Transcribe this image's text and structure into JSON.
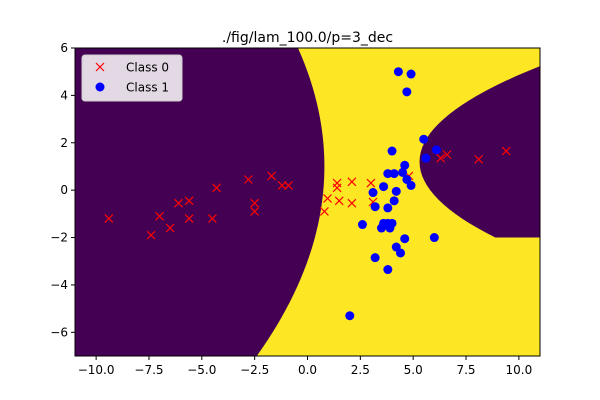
{
  "chart_data": {
    "type": "scatter",
    "title": "./fig/lam_100.0/p=3_dec",
    "xlabel": "",
    "ylabel": "",
    "xlim": [
      -11,
      11
    ],
    "ylim": [
      -7,
      6
    ],
    "x_ticks": [
      {
        "value": -10,
        "label": "−10.0"
      },
      {
        "value": -7.5,
        "label": "−7.5"
      },
      {
        "value": -5,
        "label": "−5.0"
      },
      {
        "value": -2.5,
        "label": "−2.5"
      },
      {
        "value": 0,
        "label": "0.0"
      },
      {
        "value": 2.5,
        "label": "2.5"
      },
      {
        "value": 5,
        "label": "5.0"
      },
      {
        "value": 7.5,
        "label": "7.5"
      },
      {
        "value": 10,
        "label": "10.0"
      }
    ],
    "y_ticks": [
      {
        "value": -6,
        "label": "−6"
      },
      {
        "value": -4,
        "label": "−4"
      },
      {
        "value": -2,
        "label": "−2"
      },
      {
        "value": 0,
        "label": "0"
      },
      {
        "value": 2,
        "label": "2"
      },
      {
        "value": 4,
        "label": "4"
      },
      {
        "value": 6,
        "label": "6"
      }
    ],
    "legend": {
      "position": "upper-left"
    },
    "grid": false,
    "background": {
      "regions": [
        {
          "name": "Class 0 region",
          "color": "#440154"
        },
        {
          "name": "Class 1 region",
          "color": "#fde725"
        }
      ]
    },
    "series": [
      {
        "name": "Class 0",
        "marker": "x",
        "color": "#ff0000",
        "points": [
          [
            -9.4,
            -1.2
          ],
          [
            -7.4,
            -1.9
          ],
          [
            -7.0,
            -1.1
          ],
          [
            -6.5,
            -1.6
          ],
          [
            -6.1,
            -0.55
          ],
          [
            -5.6,
            -0.45
          ],
          [
            -5.6,
            -1.2
          ],
          [
            -4.5,
            -1.2
          ],
          [
            -4.3,
            0.1
          ],
          [
            -2.8,
            0.45
          ],
          [
            -2.5,
            -0.55
          ],
          [
            -2.5,
            -0.9
          ],
          [
            -1.7,
            0.6
          ],
          [
            -1.2,
            0.2
          ],
          [
            -0.9,
            0.2
          ],
          [
            0.8,
            -0.9
          ],
          [
            0.95,
            -0.35
          ],
          [
            1.4,
            0.3
          ],
          [
            1.4,
            0.1
          ],
          [
            1.5,
            -0.45
          ],
          [
            2.1,
            0.35
          ],
          [
            2.1,
            -0.55
          ],
          [
            3.0,
            0.3
          ],
          [
            3.1,
            -0.5
          ],
          [
            4.8,
            0.6
          ],
          [
            6.3,
            1.35
          ],
          [
            6.6,
            1.5
          ],
          [
            8.1,
            1.3
          ],
          [
            9.4,
            1.65
          ]
        ]
      },
      {
        "name": "Class 1",
        "marker": "o",
        "color": "#0000ff",
        "points": [
          [
            4.3,
            5.0
          ],
          [
            4.9,
            4.9
          ],
          [
            4.7,
            4.15
          ],
          [
            5.5,
            2.15
          ],
          [
            5.6,
            1.35
          ],
          [
            6.1,
            1.7
          ],
          [
            4.0,
            1.65
          ],
          [
            4.6,
            1.05
          ],
          [
            4.5,
            0.75
          ],
          [
            3.8,
            0.7
          ],
          [
            4.1,
            0.7
          ],
          [
            3.6,
            0.15
          ],
          [
            4.2,
            -0.05
          ],
          [
            4.9,
            0.2
          ],
          [
            4.7,
            0.45
          ],
          [
            3.1,
            -0.1
          ],
          [
            4.1,
            -0.45
          ],
          [
            3.2,
            -0.7
          ],
          [
            3.8,
            -0.75
          ],
          [
            3.6,
            -1.4
          ],
          [
            3.8,
            -1.4
          ],
          [
            4.0,
            -1.4
          ],
          [
            3.5,
            -1.6
          ],
          [
            3.9,
            -1.6
          ],
          [
            2.6,
            -1.45
          ],
          [
            4.6,
            -2.05
          ],
          [
            4.2,
            -2.4
          ],
          [
            4.4,
            -2.65
          ],
          [
            3.2,
            -2.85
          ],
          [
            3.8,
            -3.35
          ],
          [
            6.0,
            -2.0
          ],
          [
            2.0,
            -5.3
          ]
        ]
      }
    ]
  }
}
